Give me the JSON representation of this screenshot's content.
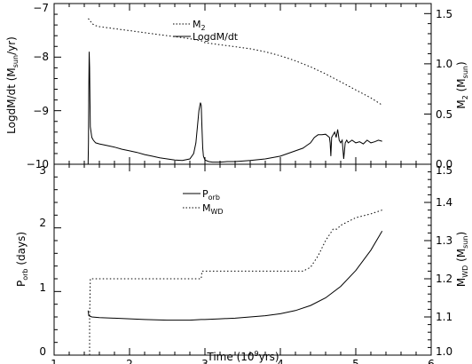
{
  "chart_data": [
    {
      "type": "line",
      "panel": "top",
      "ylabel_left": {
        "main": "LogdM/dt (M",
        "sub": "sun",
        "tail": "/yr)"
      },
      "ylabel_right": {
        "main": "M",
        "sub": "2",
        "tail": " (M",
        "sub2": "sun",
        "tail2": ")"
      },
      "xlim": [
        1,
        6
      ],
      "ylim_left": [
        -10,
        -7
      ],
      "ylim_right": [
        0,
        1.6
      ],
      "yticks_left": [
        -10,
        -9,
        -8,
        -7
      ],
      "yticks_left_labels": [
        "−10",
        "−9",
        "−8",
        "−7"
      ],
      "yticks_right": [
        0.0,
        0.5,
        1.0,
        1.5
      ],
      "yticks_right_labels": [
        "0.0",
        "0.5",
        "1.0",
        "1.5"
      ],
      "legend": [
        {
          "style": "dotted",
          "main": "M",
          "sub": "2",
          "tail": ""
        },
        {
          "style": "solid",
          "main": "LogdM/dt",
          "sub": "",
          "tail": ""
        }
      ],
      "legend_placement": "top-center",
      "series": [
        {
          "axis": "right",
          "style": "dotted",
          "x": [
            1.45,
            1.47,
            1.5,
            1.55,
            1.6,
            1.8,
            2.0,
            2.2,
            2.4,
            2.6,
            2.8,
            2.95,
            3.0,
            3.2,
            3.4,
            3.6,
            3.8,
            4.0,
            4.2,
            4.4,
            4.6,
            4.8,
            5.0,
            5.2,
            5.35
          ],
          "y": [
            1.45,
            1.44,
            1.4,
            1.38,
            1.37,
            1.35,
            1.33,
            1.31,
            1.29,
            1.27,
            1.25,
            1.23,
            1.21,
            1.19,
            1.17,
            1.15,
            1.12,
            1.08,
            1.03,
            0.97,
            0.9,
            0.82,
            0.74,
            0.66,
            0.59
          ]
        },
        {
          "axis": "left",
          "style": "solid",
          "x": [
            1.45,
            1.455,
            1.46,
            1.465,
            1.47,
            1.475,
            1.48,
            1.5,
            1.52,
            1.55,
            1.6,
            1.7,
            1.8,
            1.9,
            2.0,
            2.1,
            2.2,
            2.3,
            2.4,
            2.5,
            2.6,
            2.7,
            2.8,
            2.85,
            2.88,
            2.9,
            2.92,
            2.94,
            2.95,
            2.96,
            2.97,
            2.98,
            3.0,
            3.05,
            3.1,
            3.2,
            3.3,
            3.4,
            3.6,
            3.8,
            4.0,
            4.1,
            4.2,
            4.3,
            4.35,
            4.4,
            4.45,
            4.5,
            4.55,
            4.6,
            4.65,
            4.66,
            4.67,
            4.68,
            4.7,
            4.72,
            4.74,
            4.76,
            4.78,
            4.8,
            4.82,
            4.84,
            4.86,
            4.88,
            4.9,
            4.95,
            5.0,
            5.05,
            5.1,
            5.15,
            5.2,
            5.25,
            5.3,
            5.35
          ],
          "y": [
            -10.0,
            -9.6,
            -8.6,
            -7.9,
            -8.2,
            -8.8,
            -9.3,
            -9.5,
            -9.55,
            -9.6,
            -9.62,
            -9.65,
            -9.68,
            -9.72,
            -9.75,
            -9.78,
            -9.82,
            -9.85,
            -9.88,
            -9.9,
            -9.92,
            -9.93,
            -9.9,
            -9.8,
            -9.6,
            -9.3,
            -9.0,
            -8.85,
            -8.9,
            -9.3,
            -9.7,
            -9.85,
            -9.92,
            -9.95,
            -9.96,
            -9.96,
            -9.95,
            -9.95,
            -9.93,
            -9.9,
            -9.85,
            -9.8,
            -9.75,
            -9.7,
            -9.65,
            -9.6,
            -9.5,
            -9.45,
            -9.45,
            -9.44,
            -9.5,
            -9.6,
            -9.85,
            -9.5,
            -9.45,
            -9.4,
            -9.5,
            -9.35,
            -9.55,
            -9.6,
            -9.55,
            -9.9,
            -9.6,
            -9.55,
            -9.6,
            -9.55,
            -9.6,
            -9.58,
            -9.62,
            -9.55,
            -9.6,
            -9.58,
            -9.55,
            -9.57
          ]
        }
      ]
    },
    {
      "type": "line",
      "panel": "bottom",
      "xlabel": {
        "main": "Time (10",
        "sup": "9",
        "tail": "yrs)"
      },
      "ylabel_left": {
        "main": "P",
        "sub": "orb",
        "tail": " (days)"
      },
      "ylabel_right": {
        "main": "M",
        "sub": "WD",
        "tail": " (M",
        "sub2": "sun",
        "tail2": ")"
      },
      "xlim": [
        1,
        6
      ],
      "ylim_left": [
        0,
        3
      ],
      "ylim_right": [
        1.0,
        1.5
      ],
      "xticks": [
        1,
        2,
        3,
        4,
        5,
        6
      ],
      "xticks_labels": [
        "1",
        "2",
        "3",
        "4",
        "5",
        "6"
      ],
      "yticks_left": [
        0,
        1,
        2,
        3
      ],
      "yticks_left_labels": [
        "0",
        "1",
        "2",
        "3"
      ],
      "yticks_right": [
        1.0,
        1.1,
        1.2,
        1.3,
        1.4,
        1.5
      ],
      "yticks_right_labels": [
        "1.0",
        "1.1",
        "1.2",
        "1.3",
        "1.4",
        "1.5"
      ],
      "legend": [
        {
          "style": "solid",
          "main": "P",
          "sub": "orb"
        },
        {
          "style": "dotted",
          "main": "M",
          "sub": "WD"
        }
      ],
      "legend_placement": "top-center",
      "series": [
        {
          "axis": "left",
          "style": "solid",
          "x": [
            1.45,
            1.46,
            1.5,
            1.6,
            1.8,
            2.0,
            2.2,
            2.5,
            2.8,
            2.95,
            3.0,
            3.2,
            3.4,
            3.6,
            3.8,
            4.0,
            4.2,
            4.4,
            4.6,
            4.8,
            5.0,
            5.2,
            5.35
          ],
          "y": [
            0.7,
            0.62,
            0.6,
            0.59,
            0.58,
            0.57,
            0.56,
            0.55,
            0.55,
            0.56,
            0.56,
            0.57,
            0.58,
            0.6,
            0.62,
            0.65,
            0.7,
            0.78,
            0.9,
            1.08,
            1.33,
            1.65,
            1.95
          ]
        },
        {
          "axis": "right",
          "style": "dotted",
          "x": [
            1.47,
            1.47,
            1.48,
            1.5,
            2.0,
            2.5,
            2.95,
            2.96,
            3.0,
            3.5,
            4.0,
            4.3,
            4.4,
            4.5,
            4.6,
            4.7,
            4.75,
            4.8,
            5.0,
            5.2,
            5.35
          ],
          "y": [
            1.0,
            1.1,
            1.2,
            1.2,
            1.2,
            1.2,
            1.2,
            1.22,
            1.22,
            1.22,
            1.22,
            1.22,
            1.23,
            1.26,
            1.3,
            1.33,
            1.33,
            1.34,
            1.36,
            1.37,
            1.38
          ]
        }
      ]
    }
  ]
}
